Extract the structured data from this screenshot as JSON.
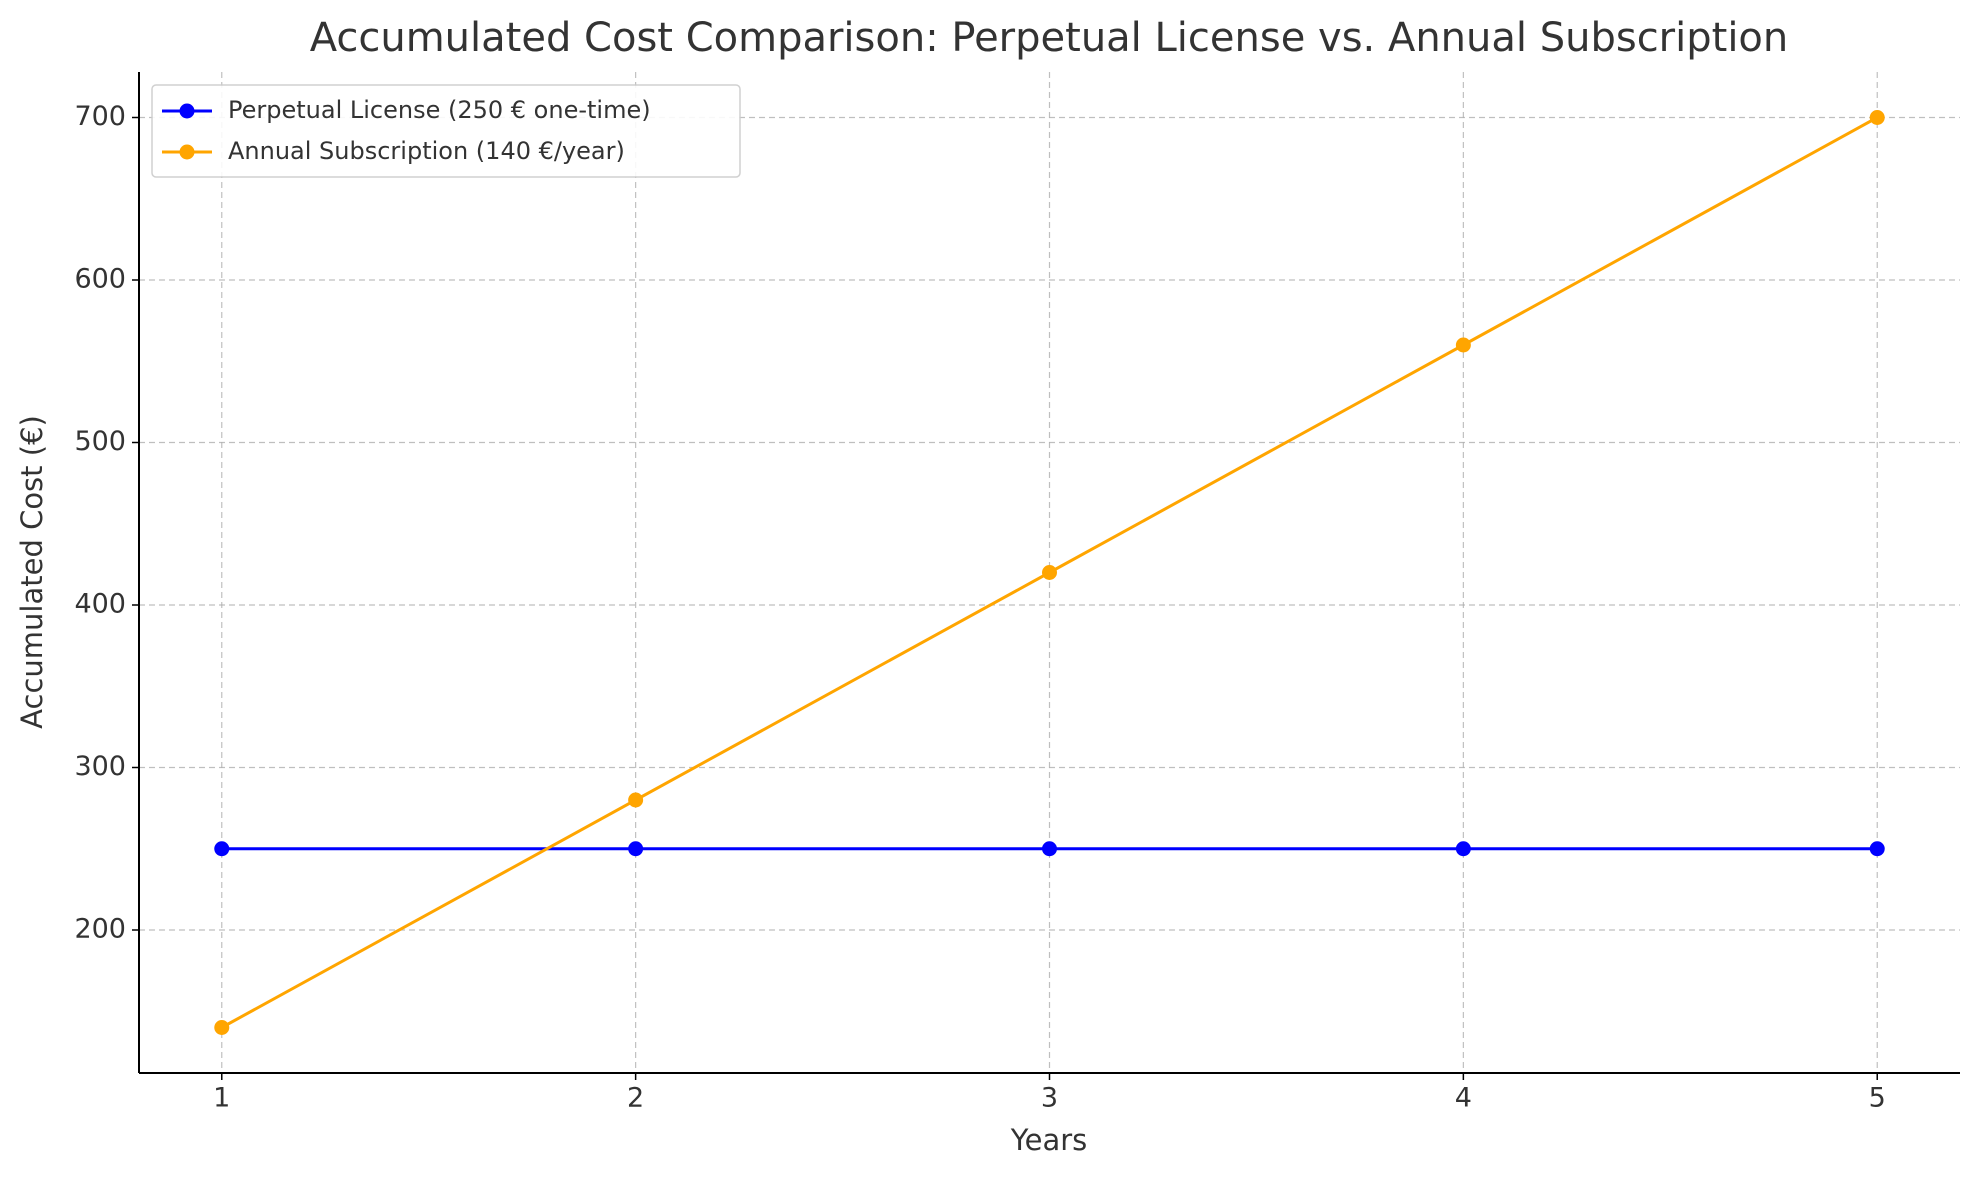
{
  "chart_data": {
    "type": "line",
    "title": "Accumulated Cost Comparison: Perpetual License vs. Annual Subscription",
    "x_label": "Years",
    "y_label": "Accumulated Cost (€)",
    "x": [
      1,
      2,
      3,
      4,
      5
    ],
    "series": [
      {
        "name": "Perpetual License (250 € one-time)",
        "color": "#0000ff",
        "values": [
          250,
          250,
          250,
          250,
          250
        ]
      },
      {
        "name": "Annual Subscription (140 €/year)",
        "color": "#ffa500",
        "values": [
          140,
          280,
          420,
          560,
          700
        ]
      }
    ],
    "xlim": [
      0.8,
      5.2
    ],
    "ylim": [
      112,
      728
    ],
    "xticks": [
      1,
      2,
      3,
      4,
      5
    ],
    "yticks": [
      200,
      300,
      400,
      500,
      600,
      700
    ],
    "grid": true,
    "legend": "upper-left"
  }
}
